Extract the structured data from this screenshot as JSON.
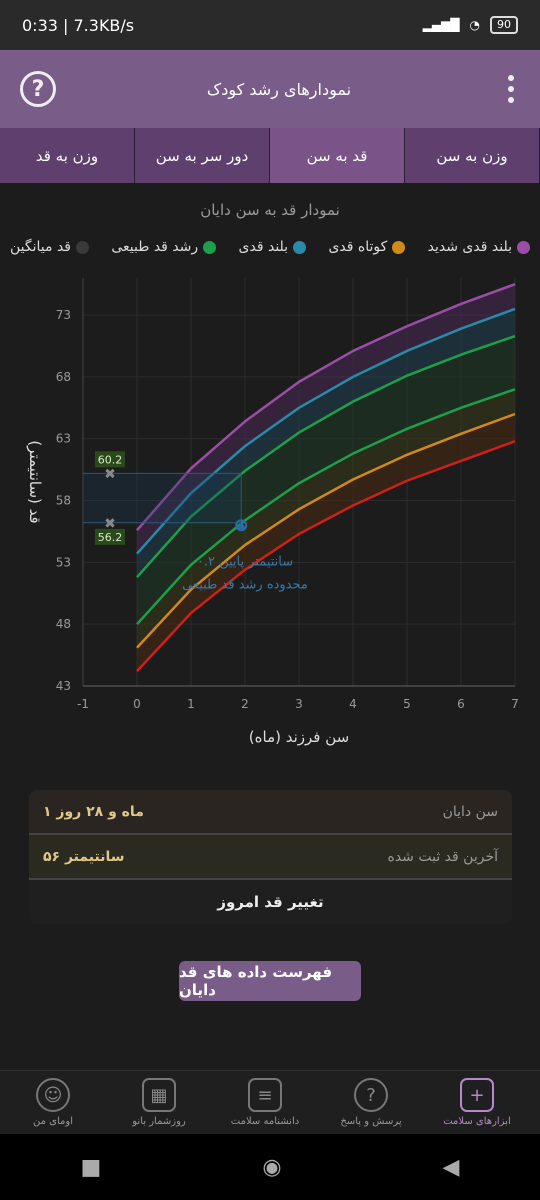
{
  "statusbar": {
    "time": "0:33 | 7.3KB/s",
    "battery": "90"
  },
  "appbar": {
    "title": "نمودارهای رشد کودک"
  },
  "tabs": [
    {
      "label": "وزن به سن"
    },
    {
      "label": "قد به سن"
    },
    {
      "label": "دور سر به سن"
    },
    {
      "label": "وزن به قد"
    }
  ],
  "chart_title": "نمودار قد به سن دایان",
  "legend": [
    {
      "label": "بلند قدی شدید",
      "color": "#9b4ea8"
    },
    {
      "label": "کوتاه قدی",
      "color": "#d08a1a"
    },
    {
      "label": "بلند قدی",
      "color": "#2a8aa8"
    },
    {
      "label": "رشد قد طبیعی",
      "color": "#1ea04a"
    },
    {
      "label": "قد میانگین",
      "color": "#3a3a3a"
    }
  ],
  "chart_data": {
    "type": "line",
    "title": "نمودار قد به سن دایان",
    "xlabel": "سن فرزند (ماه)",
    "ylabel": "قد (سانتیمتر)",
    "xlim": [
      -1,
      7
    ],
    "ylim": [
      43,
      76
    ],
    "x_ticks": [
      "-1",
      "0",
      "1",
      "2",
      "3",
      "4",
      "5",
      "6",
      "7"
    ],
    "y_ticks": [
      "43",
      "48",
      "53",
      "58",
      "63",
      "68",
      "73"
    ],
    "x": [
      0,
      1,
      2,
      3,
      4,
      5,
      6,
      7
    ],
    "series": [
      {
        "color": "#9b4ea8",
        "values": [
          55.6,
          60.6,
          64.4,
          67.6,
          70.1,
          72.1,
          73.9,
          75.5
        ]
      },
      {
        "color": "#2a8aa8",
        "values": [
          53.7,
          58.6,
          62.4,
          65.5,
          68.0,
          70.1,
          71.9,
          73.5
        ]
      },
      {
        "color": "#1ea04a",
        "values": [
          51.8,
          56.7,
          60.4,
          63.5,
          66.0,
          68.1,
          69.8,
          71.3
        ]
      },
      {
        "color": "#1ea04a",
        "values": [
          48.0,
          52.8,
          56.4,
          59.4,
          61.8,
          63.8,
          65.5,
          67.0
        ]
      },
      {
        "color": "#d08a1a",
        "values": [
          46.1,
          50.8,
          54.4,
          57.3,
          59.7,
          61.7,
          63.4,
          65.0
        ]
      },
      {
        "color": "#d0201a",
        "values": [
          44.2,
          48.9,
          52.4,
          55.3,
          57.6,
          59.6,
          61.2,
          62.8
        ]
      }
    ],
    "measurement": {
      "x": 1.93,
      "y": 56,
      "label_line1": "۰.۲ سانتیمتر پایین",
      "label_line2": "محدوده رشد قد طبیعی"
    },
    "markers": [
      {
        "label": "60.2",
        "y": 60.2
      },
      {
        "label": "56.2",
        "y": 56.2
      }
    ]
  },
  "info": {
    "age_label": "سن دایان",
    "age_value": "۱ ماه و ۲۸ روز",
    "height_label": "آخرین قد ثبت شده",
    "height_value": "۵۶ سانتیمتر",
    "change_btn": "تغییر قد امروز"
  },
  "list_btn": "فهرست داده های قد دایان",
  "bottom_nav": [
    {
      "label": "ابزارهای سلامت",
      "icon": "medical-kit-icon"
    },
    {
      "label": "پرسش و پاسخ",
      "icon": "question-bubble-icon"
    },
    {
      "label": "دانشنامه سلامت",
      "icon": "book-icon"
    },
    {
      "label": "روزشمار بانو",
      "icon": "calendar-icon"
    },
    {
      "label": "اومای من",
      "icon": "user-icon"
    }
  ]
}
